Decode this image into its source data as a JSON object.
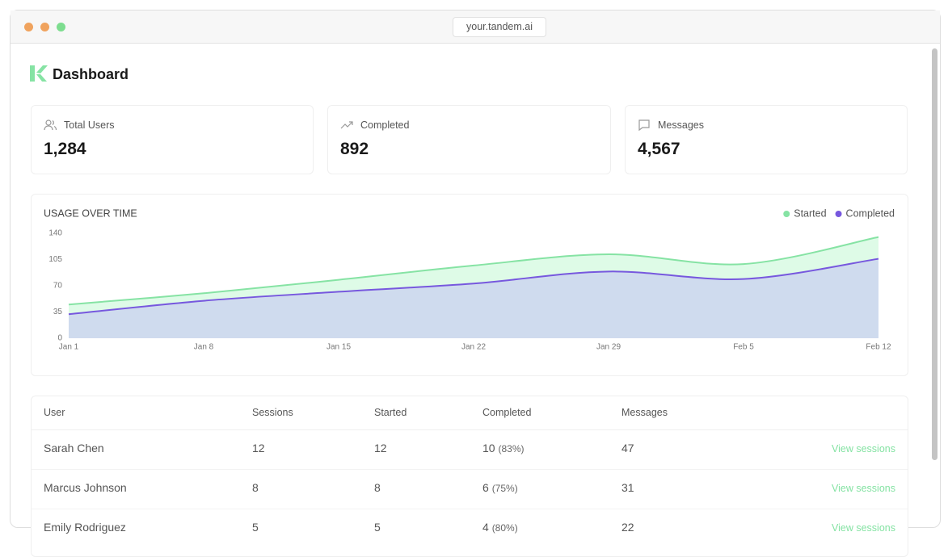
{
  "browser": {
    "url": "your.tandem.ai"
  },
  "header": {
    "title": "Dashboard"
  },
  "stats": [
    {
      "label": "Total Users",
      "value": "1,284"
    },
    {
      "label": "Completed",
      "value": "892"
    },
    {
      "label": "Messages",
      "value": "4,567"
    }
  ],
  "chart_data": {
    "type": "area",
    "title": "USAGE OVER TIME",
    "categories": [
      "Jan 1",
      "Jan 8",
      "Jan 15",
      "Jan 22",
      "Jan 29",
      "Feb 5",
      "Feb 12"
    ],
    "series": [
      {
        "name": "Started",
        "color": "#86e3a4",
        "fill": "#defbe7",
        "values": [
          45,
          60,
          78,
          97,
          112,
          99,
          135
        ]
      },
      {
        "name": "Completed",
        "color": "#7758de",
        "fill": "#cfdbee",
        "values": [
          32,
          50,
          62,
          73,
          89,
          79,
          106
        ]
      }
    ],
    "ylim": [
      0,
      140
    ],
    "yticks": [
      0,
      35,
      70,
      105,
      140
    ],
    "legend": "top-right"
  },
  "table": {
    "columns": [
      "User",
      "Sessions",
      "Started",
      "Completed",
      "Messages"
    ],
    "rows": [
      {
        "user": "Sarah Chen",
        "sessions": 12,
        "started": 12,
        "completed": 10,
        "completed_pct": "(83%)",
        "messages": 47,
        "action": "View sessions"
      },
      {
        "user": "Marcus Johnson",
        "sessions": 8,
        "started": 8,
        "completed": 6,
        "completed_pct": "(75%)",
        "messages": 31,
        "action": "View sessions"
      },
      {
        "user": "Emily Rodriguez",
        "sessions": 5,
        "started": 5,
        "completed": 4,
        "completed_pct": "(80%)",
        "messages": 22,
        "action": "View sessions"
      }
    ]
  }
}
